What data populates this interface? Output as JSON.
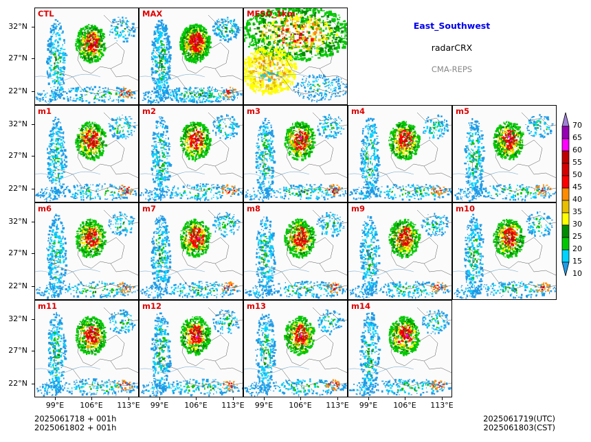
{
  "header": {
    "region": "East_Southwest",
    "variable": "radarCRX",
    "system": "CMA-REPS"
  },
  "colors": {
    "region": "#0000ee",
    "system": "#888888",
    "panel_label": "#e00000"
  },
  "panels": [
    {
      "label": "CTL",
      "kind": "member"
    },
    {
      "label": "MAX",
      "kind": "max"
    },
    {
      "label": "MESO_1km",
      "kind": "meso"
    },
    {
      "label": "m1",
      "kind": "member"
    },
    {
      "label": "m2",
      "kind": "member"
    },
    {
      "label": "m3",
      "kind": "member"
    },
    {
      "label": "m4",
      "kind": "member"
    },
    {
      "label": "m5",
      "kind": "member"
    },
    {
      "label": "m6",
      "kind": "member"
    },
    {
      "label": "m7",
      "kind": "member"
    },
    {
      "label": "m8",
      "kind": "member"
    },
    {
      "label": "m9",
      "kind": "member"
    },
    {
      "label": "m10",
      "kind": "member"
    },
    {
      "label": "m11",
      "kind": "member"
    },
    {
      "label": "m12",
      "kind": "member"
    },
    {
      "label": "m13",
      "kind": "member"
    },
    {
      "label": "m14",
      "kind": "member"
    }
  ],
  "axes": {
    "lat_labels": [
      "32°N",
      "27°N",
      "22°N"
    ],
    "lon_labels": [
      "99°E",
      "106°E",
      "113°E"
    ]
  },
  "colorbar": {
    "levels": [
      "10",
      "15",
      "20",
      "25",
      "30",
      "35",
      "40",
      "45",
      "50",
      "55",
      "60",
      "65",
      "70"
    ],
    "colors": [
      "#1e9be6",
      "#00d3ff",
      "#00c800",
      "#008c00",
      "#ffff00",
      "#e8c000",
      "#ff8c00",
      "#ff0000",
      "#d70000",
      "#c00000",
      "#ff00ff",
      "#9600b4",
      "#a080d8"
    ]
  },
  "footer": {
    "init_line1": "2025061718  +  001h",
    "init_line2": "2025061802  +  001h",
    "valid_utc": "2025061719(UTC)",
    "valid_cst": "2025061803(CST)"
  }
}
